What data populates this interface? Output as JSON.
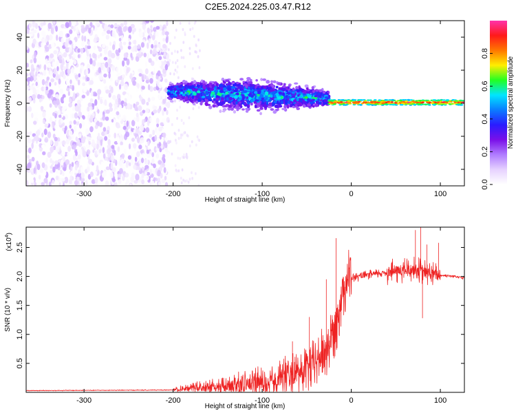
{
  "title": "C2E5.2024.225.03.47.R12",
  "chart_data": [
    {
      "type": "heatmap",
      "xlabel": "Height of straight line (km)",
      "ylabel": "Frequency (Hz)",
      "xlim": [
        -365,
        127
      ],
      "ylim": [
        -50,
        50
      ],
      "x_ticks": [
        -300,
        -200,
        -100,
        0,
        100
      ],
      "y_ticks": [
        -40,
        -20,
        0,
        20,
        40
      ],
      "colorbar": {
        "label": "Normalized spectral amplitude",
        "range": [
          0,
          1
        ],
        "ticks": [
          0.0,
          0.2,
          0.4,
          0.6,
          0.8
        ],
        "colors": [
          "#ffffff",
          "#e6d2ff",
          "#b07cff",
          "#7a10e8",
          "#2a1cff",
          "#0a7cff",
          "#00e5ff",
          "#22ff22",
          "#ffee00",
          "#ff7700",
          "#ff1a1a",
          "#ff33aa"
        ]
      },
      "regions": [
        {
          "x_range": [
            -365,
            -205
          ],
          "description": "broadband noise",
          "freq_range": [
            -50,
            50
          ],
          "amplitude_range": [
            0,
            0.15
          ]
        },
        {
          "x_range": [
            -205,
            -25
          ],
          "description": "signal band",
          "freq_center_start": 7,
          "freq_center_end": 3,
          "amplitude_range": [
            0.1,
            0.55
          ]
        },
        {
          "x_range": [
            -25,
            127
          ],
          "description": "narrow carrier near 0 Hz",
          "freq_center": 0.5,
          "amplitude_range": [
            0.5,
            1.0
          ]
        }
      ]
    },
    {
      "type": "line",
      "xlabel": "Height of straight line (km)",
      "ylabel": "SNR (10 * v/v)",
      "y_scale_label": "(x10",
      "y_scale_exponent": "4",
      "y_scale_suffix": ")",
      "xlim": [
        -365,
        127
      ],
      "ylim": [
        0,
        2.85
      ],
      "x_ticks": [
        -300,
        -200,
        -100,
        0,
        100
      ],
      "y_ticks": [
        0.5,
        1.0,
        1.5,
        2.0,
        2.5
      ],
      "y_tick_labels": [
        "0.5",
        "1.0",
        "1.5",
        "2.0",
        "2.5"
      ],
      "series": [
        {
          "color": "#ee2222",
          "envelope_x": [
            -365,
            -200,
            -180,
            -150,
            -120,
            -100,
            -80,
            -60,
            -50,
            -40,
            -30,
            -25,
            -20,
            -15,
            -10,
            -5,
            0,
            10,
            20,
            30,
            40,
            50,
            60,
            70,
            75,
            80,
            85,
            90,
            95,
            100,
            110,
            120,
            127
          ],
          "envelope_y": [
            0.03,
            0.04,
            0.07,
            0.09,
            0.13,
            0.17,
            0.24,
            0.32,
            0.4,
            0.52,
            0.68,
            0.85,
            1.05,
            1.35,
            1.75,
            1.95,
            1.97,
            2.0,
            2.03,
            2.05,
            2.07,
            2.09,
            2.1,
            2.12,
            2.12,
            2.08,
            2.06,
            2.04,
            2.03,
            2.02,
            2.01,
            2.0,
            1.97
          ],
          "spikes": [
            {
              "x": -17,
              "y": 2.66
            },
            {
              "x": -28,
              "y": 1.95
            },
            {
              "x": -47,
              "y": 1.3
            },
            {
              "x": -66,
              "y": 0.88
            },
            {
              "x": 78,
              "y": 2.85
            },
            {
              "x": 72,
              "y": 2.8
            },
            {
              "x": 85,
              "y": 2.55
            },
            {
              "x": 98,
              "y": 2.58
            },
            {
              "x": 80,
              "y": 1.28
            }
          ]
        }
      ]
    }
  ]
}
